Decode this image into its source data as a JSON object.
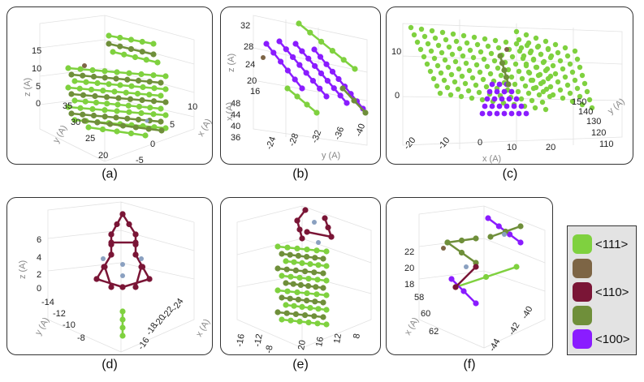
{
  "figure": {
    "panels": [
      {
        "id": "a",
        "caption": "(a)",
        "axes": {
          "z_label": "z (A)",
          "y_label": "y (A)",
          "x_label": "x (A)",
          "z_ticks": [
            "15",
            "10",
            "5",
            "0"
          ],
          "y_ticks": [
            "35",
            "30",
            "25",
            "20"
          ],
          "x_ticks": [
            "10",
            "5",
            "0",
            "-5"
          ]
        }
      },
      {
        "id": "b",
        "caption": "(b)",
        "axes": {
          "z_label": "z (A)",
          "x_label": "x (A)",
          "y_label": "y (A)",
          "z_ticks": [
            "32",
            "28",
            "24",
            "20",
            "16"
          ],
          "x_ticks": [
            "48",
            "44",
            "40",
            "36"
          ],
          "y_ticks": [
            "-24",
            "-28",
            "-32",
            "-36",
            "-40"
          ]
        }
      },
      {
        "id": "c",
        "caption": "(c)",
        "axes": {
          "z_ticks": [
            "10",
            "0"
          ],
          "x_label": "x (A)",
          "y_label": "y (A)",
          "x_ticks": [
            "-20",
            "-10",
            "0",
            "10",
            "20"
          ],
          "y_ticks": [
            "150",
            "140",
            "130",
            "120",
            "110"
          ]
        }
      },
      {
        "id": "d",
        "caption": "(d)",
        "axes": {
          "z_label": "z (A)",
          "y_label": "y (A)",
          "x_label": "x (A)",
          "z_ticks": [
            "6",
            "4",
            "2",
            "0"
          ],
          "y_ticks": [
            "-14",
            "-12",
            "-10",
            "-8"
          ],
          "x_ticks": [
            "-24",
            "-22",
            "-20",
            "-18",
            "-16"
          ]
        }
      },
      {
        "id": "e",
        "caption": "(e)",
        "axes": {
          "y_ticks": [
            "-16",
            "-12",
            "-8"
          ],
          "x_ticks": [
            "20",
            "16",
            "12",
            "8"
          ]
        }
      },
      {
        "id": "f",
        "caption": "(f)",
        "axes": {
          "x_label": "x (A)",
          "z_ticks": [
            "22",
            "20",
            "18"
          ],
          "x_ticks": [
            "58",
            "60",
            "62"
          ],
          "y_ticks": [
            "-40",
            "-42",
            "-44"
          ]
        }
      }
    ]
  },
  "legend": {
    "items": [
      {
        "label": "<111>",
        "color": "#7fd13f"
      },
      {
        "label": "",
        "color": "#7d6545"
      },
      {
        "label": "<110>",
        "color": "#7a1536"
      },
      {
        "label": "",
        "color": "#6f8f3a"
      },
      {
        "label": "<100>",
        "color": "#8a1cff"
      }
    ]
  },
  "colors": {
    "light_green": "#7fd13f",
    "olive": "#6f8f3a",
    "brown": "#7d6545",
    "maroon": "#7a1536",
    "purple": "#8a1cff",
    "grey_point": "#8aa0c0"
  }
}
